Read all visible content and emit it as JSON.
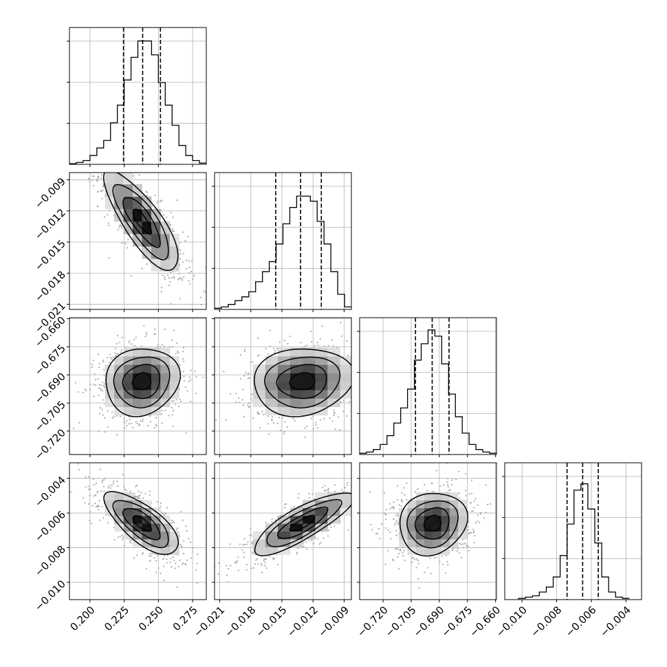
{
  "chart_data": {
    "type": "corner",
    "n_params": 4,
    "params": [
      {
        "mean": 0.238,
        "sd": 0.0135,
        "range": [
          0.185,
          0.285
        ],
        "ticks": [
          0.2,
          0.225,
          0.25,
          0.275
        ],
        "tick_labels": [
          "0.200",
          "0.225",
          "0.250",
          "0.275"
        ],
        "quantiles": [
          0.2245,
          0.2385,
          0.2515
        ],
        "hist_x": [
          0.1875,
          0.1925,
          0.1975,
          0.2025,
          0.2075,
          0.2125,
          0.2175,
          0.2225,
          0.2275,
          0.2325,
          0.2375,
          0.2425,
          0.2475,
          0.2525,
          0.2575,
          0.2625,
          0.2675,
          0.2725,
          0.2775,
          0.2825
        ],
        "hist_counts": [
          0.005,
          0.015,
          0.03,
          0.07,
          0.13,
          0.19,
          0.33,
          0.47,
          0.67,
          0.85,
          0.98,
          0.98,
          0.87,
          0.65,
          0.47,
          0.31,
          0.15,
          0.07,
          0.03,
          0.01
        ]
      },
      {
        "mean": -0.013,
        "sd": 0.0024,
        "range": [
          -0.0215,
          -0.0083
        ],
        "ticks": [
          -0.021,
          -0.018,
          -0.015,
          -0.012,
          -0.009
        ],
        "tick_labels": [
          "−0.021",
          "−0.018",
          "−0.015",
          "−0.012",
          "−0.009"
        ],
        "quantiles": [
          -0.0156,
          -0.0132,
          -0.0112
        ],
        "hist_x": [
          -0.02117,
          -0.02051,
          -0.01985,
          -0.01919,
          -0.01853,
          -0.01787,
          -0.01721,
          -0.01655,
          -0.01589,
          -0.01523,
          -0.01457,
          -0.01391,
          -0.01325,
          -0.01259,
          -0.01193,
          -0.01127,
          -0.01061,
          -0.00995,
          -0.00929,
          -0.00863
        ],
        "hist_counts": [
          0.01,
          0.02,
          0.04,
          0.07,
          0.1,
          0.14,
          0.22,
          0.3,
          0.38,
          0.52,
          0.68,
          0.81,
          0.9,
          0.9,
          0.86,
          0.7,
          0.52,
          0.3,
          0.12,
          0.02
        ]
      },
      {
        "mean": -0.6935,
        "sd": 0.009,
        "range": [
          -0.7325,
          -0.6595
        ],
        "ticks": [
          -0.72,
          -0.705,
          -0.69,
          -0.675,
          -0.66
        ],
        "tick_labels": [
          "−0.720",
          "−0.705",
          "−0.690",
          "−0.675",
          "−0.660"
        ],
        "quantiles": [
          -0.7027,
          -0.6938,
          -0.6848
        ],
        "hist_x": [
          -0.73068,
          -0.72703,
          -0.72338,
          -0.71973,
          -0.71608,
          -0.71243,
          -0.70878,
          -0.70513,
          -0.70148,
          -0.69783,
          -0.69418,
          -0.69053,
          -0.68688,
          -0.68323,
          -0.67958,
          -0.67593,
          -0.67228,
          -0.66863,
          -0.66498,
          -0.66133
        ],
        "hist_counts": [
          0.01,
          0.02,
          0.04,
          0.08,
          0.15,
          0.25,
          0.37,
          0.52,
          0.75,
          0.88,
          0.99,
          0.94,
          0.72,
          0.48,
          0.3,
          0.17,
          0.08,
          0.04,
          0.02,
          0.01
        ]
      },
      {
        "mean": -0.0066,
        "sd": 0.0009,
        "range": [
          -0.011,
          -0.0031
        ],
        "ticks": [
          -0.01,
          -0.008,
          -0.006,
          -0.004
        ],
        "tick_labels": [
          "−0.010",
          "−0.008",
          "−0.006",
          "−0.004"
        ],
        "quantiles": [
          -0.0074,
          -0.0065,
          -0.0056
        ],
        "hist_x": [
          -0.01,
          -0.0096,
          -0.0092,
          -0.0088,
          -0.0084,
          -0.008,
          -0.0076,
          -0.0072,
          -0.0068,
          -0.0064,
          -0.006,
          -0.0056,
          -0.0052,
          -0.0048,
          -0.0044,
          -0.004
        ],
        "hist_counts": [
          0.01,
          0.02,
          0.03,
          0.06,
          0.1,
          0.18,
          0.35,
          0.6,
          0.87,
          0.92,
          0.72,
          0.45,
          0.18,
          0.06,
          0.02,
          0.01
        ]
      }
    ],
    "correlations": {
      "1-0": -0.8,
      "2-0": 0.1,
      "2-1": 0.1,
      "3-0": -0.72,
      "3-1": 0.82,
      "3-2": 0.12
    },
    "grid": true,
    "colors": {
      "line": "#000000",
      "points": "#a9a9a9",
      "grid": "#b0b0b0"
    }
  }
}
